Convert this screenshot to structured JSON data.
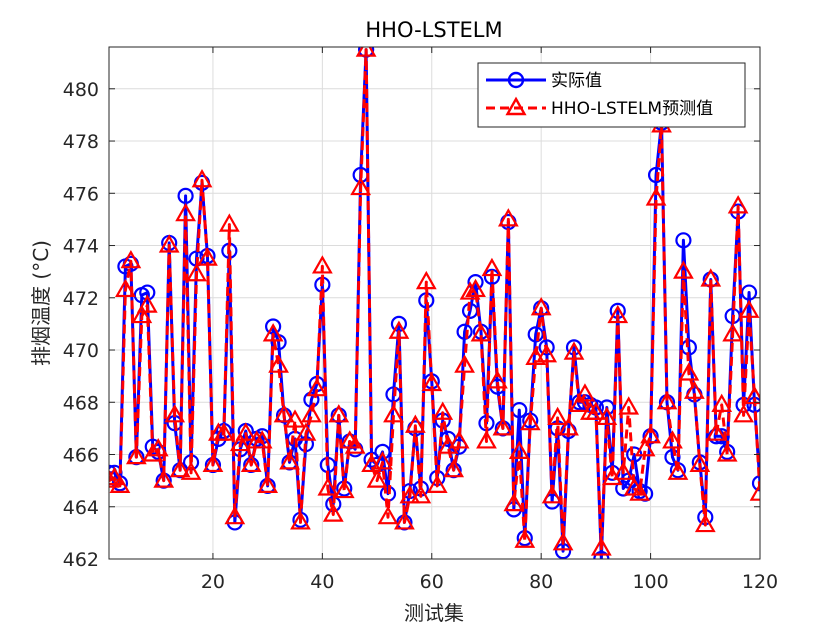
{
  "chart_data": {
    "type": "line",
    "title": "HHO-LSTELM",
    "xlabel": "测试集",
    "ylabel": "排烟温度 (°C)",
    "xlim": [
      1,
      120
    ],
    "ylim": [
      462,
      481.6
    ],
    "xticks": [
      20,
      40,
      60,
      80,
      100,
      120
    ],
    "yticks": [
      462,
      464,
      466,
      468,
      470,
      472,
      474,
      476,
      478,
      480
    ],
    "grid": true,
    "legend_position": "top-right",
    "x": [
      1,
      2,
      3,
      4,
      5,
      6,
      7,
      8,
      9,
      10,
      11,
      12,
      13,
      14,
      15,
      16,
      17,
      18,
      19,
      20,
      21,
      22,
      23,
      24,
      25,
      26,
      27,
      28,
      29,
      30,
      31,
      32,
      33,
      34,
      35,
      36,
      37,
      38,
      39,
      40,
      41,
      42,
      43,
      44,
      45,
      46,
      47,
      48,
      49,
      50,
      51,
      52,
      53,
      54,
      55,
      56,
      57,
      58,
      59,
      60,
      61,
      62,
      63,
      64,
      65,
      66,
      67,
      68,
      69,
      70,
      71,
      72,
      73,
      74,
      75,
      76,
      77,
      78,
      79,
      80,
      81,
      82,
      83,
      84,
      85,
      86,
      87,
      88,
      89,
      90,
      91,
      92,
      93,
      94,
      95,
      96,
      97,
      98,
      99,
      100,
      101,
      102,
      103,
      104,
      105,
      106,
      107,
      108,
      109,
      110,
      111,
      112,
      113,
      114,
      115,
      116,
      117,
      118,
      119,
      120
    ],
    "series": [
      {
        "name": "实际值",
        "color": "#0000ff",
        "marker": "circle",
        "line_style": "solid",
        "values": [
          465.3,
          465.3,
          464.9,
          473.2,
          473.3,
          465.9,
          472.1,
          472.2,
          466.3,
          466.1,
          465.0,
          474.1,
          467.2,
          465.4,
          475.9,
          465.7,
          473.5,
          476.4,
          473.6,
          465.6,
          466.6,
          466.9,
          473.8,
          463.4,
          466.2,
          466.9,
          465.6,
          466.6,
          466.7,
          464.8,
          470.9,
          470.3,
          467.5,
          465.7,
          466.6,
          463.5,
          466.4,
          468.1,
          468.7,
          472.5,
          465.6,
          464.1,
          467.5,
          464.7,
          466.5,
          466.2,
          476.7,
          481.5,
          465.8,
          465.6,
          466.1,
          464.5,
          468.3,
          471.0,
          463.4,
          464.6,
          467.0,
          464.7,
          471.9,
          468.8,
          465.1,
          467.3,
          466.6,
          465.4,
          466.3,
          470.7,
          471.5,
          472.6,
          470.7,
          467.2,
          472.8,
          468.6,
          467.0,
          474.9,
          463.9,
          467.7,
          462.8,
          467.3,
          470.6,
          471.6,
          470.1,
          464.2,
          467.0,
          462.3,
          466.9,
          470.1,
          468.0,
          468.0,
          467.9,
          467.8,
          462.0,
          467.8,
          465.3,
          471.5,
          464.7,
          465.0,
          466.0,
          464.6,
          464.5,
          466.7,
          476.7,
          478.7,
          468.0,
          465.9,
          465.4,
          474.2,
          470.1,
          468.3,
          465.7,
          463.6,
          472.7,
          466.7,
          466.7,
          466.1,
          471.3,
          475.3,
          467.9,
          472.2,
          467.9,
          464.9
        ]
      },
      {
        "name": "HHO-LSTELM预测值",
        "color": "#ff0000",
        "marker": "triangle",
        "line_style": "dashed",
        "values": [
          465.0,
          465.1,
          464.8,
          472.3,
          473.4,
          465.9,
          471.3,
          471.7,
          466.0,
          466.2,
          465.0,
          474.0,
          467.5,
          465.4,
          475.2,
          465.3,
          472.9,
          476.5,
          473.5,
          465.6,
          466.8,
          466.8,
          474.8,
          463.6,
          466.4,
          466.8,
          465.6,
          466.5,
          466.5,
          464.8,
          470.6,
          469.4,
          467.5,
          465.7,
          467.3,
          463.4,
          466.8,
          467.5,
          468.5,
          473.2,
          464.7,
          463.7,
          467.5,
          464.6,
          466.5,
          466.3,
          476.2,
          481.5,
          465.6,
          465.0,
          465.7,
          463.6,
          467.5,
          470.7,
          463.4,
          464.4,
          467.1,
          464.4,
          472.6,
          468.7,
          464.8,
          467.6,
          466.3,
          465.4,
          466.5,
          469.4,
          472.2,
          472.3,
          470.6,
          466.5,
          473.1,
          468.8,
          467.0,
          475.0,
          464.1,
          466.1,
          462.7,
          467.2,
          469.7,
          471.6,
          469.8,
          464.4,
          467.4,
          462.6,
          467.0,
          469.9,
          467.9,
          468.3,
          467.6,
          467.6,
          462.4,
          467.4,
          465.1,
          471.3,
          465.3,
          467.8,
          464.7,
          464.5,
          466.2,
          466.7,
          475.8,
          478.6,
          468.0,
          466.5,
          465.3,
          473.0,
          469.1,
          468.4,
          465.6,
          463.3,
          472.7,
          466.8,
          467.9,
          466.0,
          470.6,
          475.5,
          467.5,
          471.5,
          468.2,
          464.5
        ]
      }
    ]
  }
}
